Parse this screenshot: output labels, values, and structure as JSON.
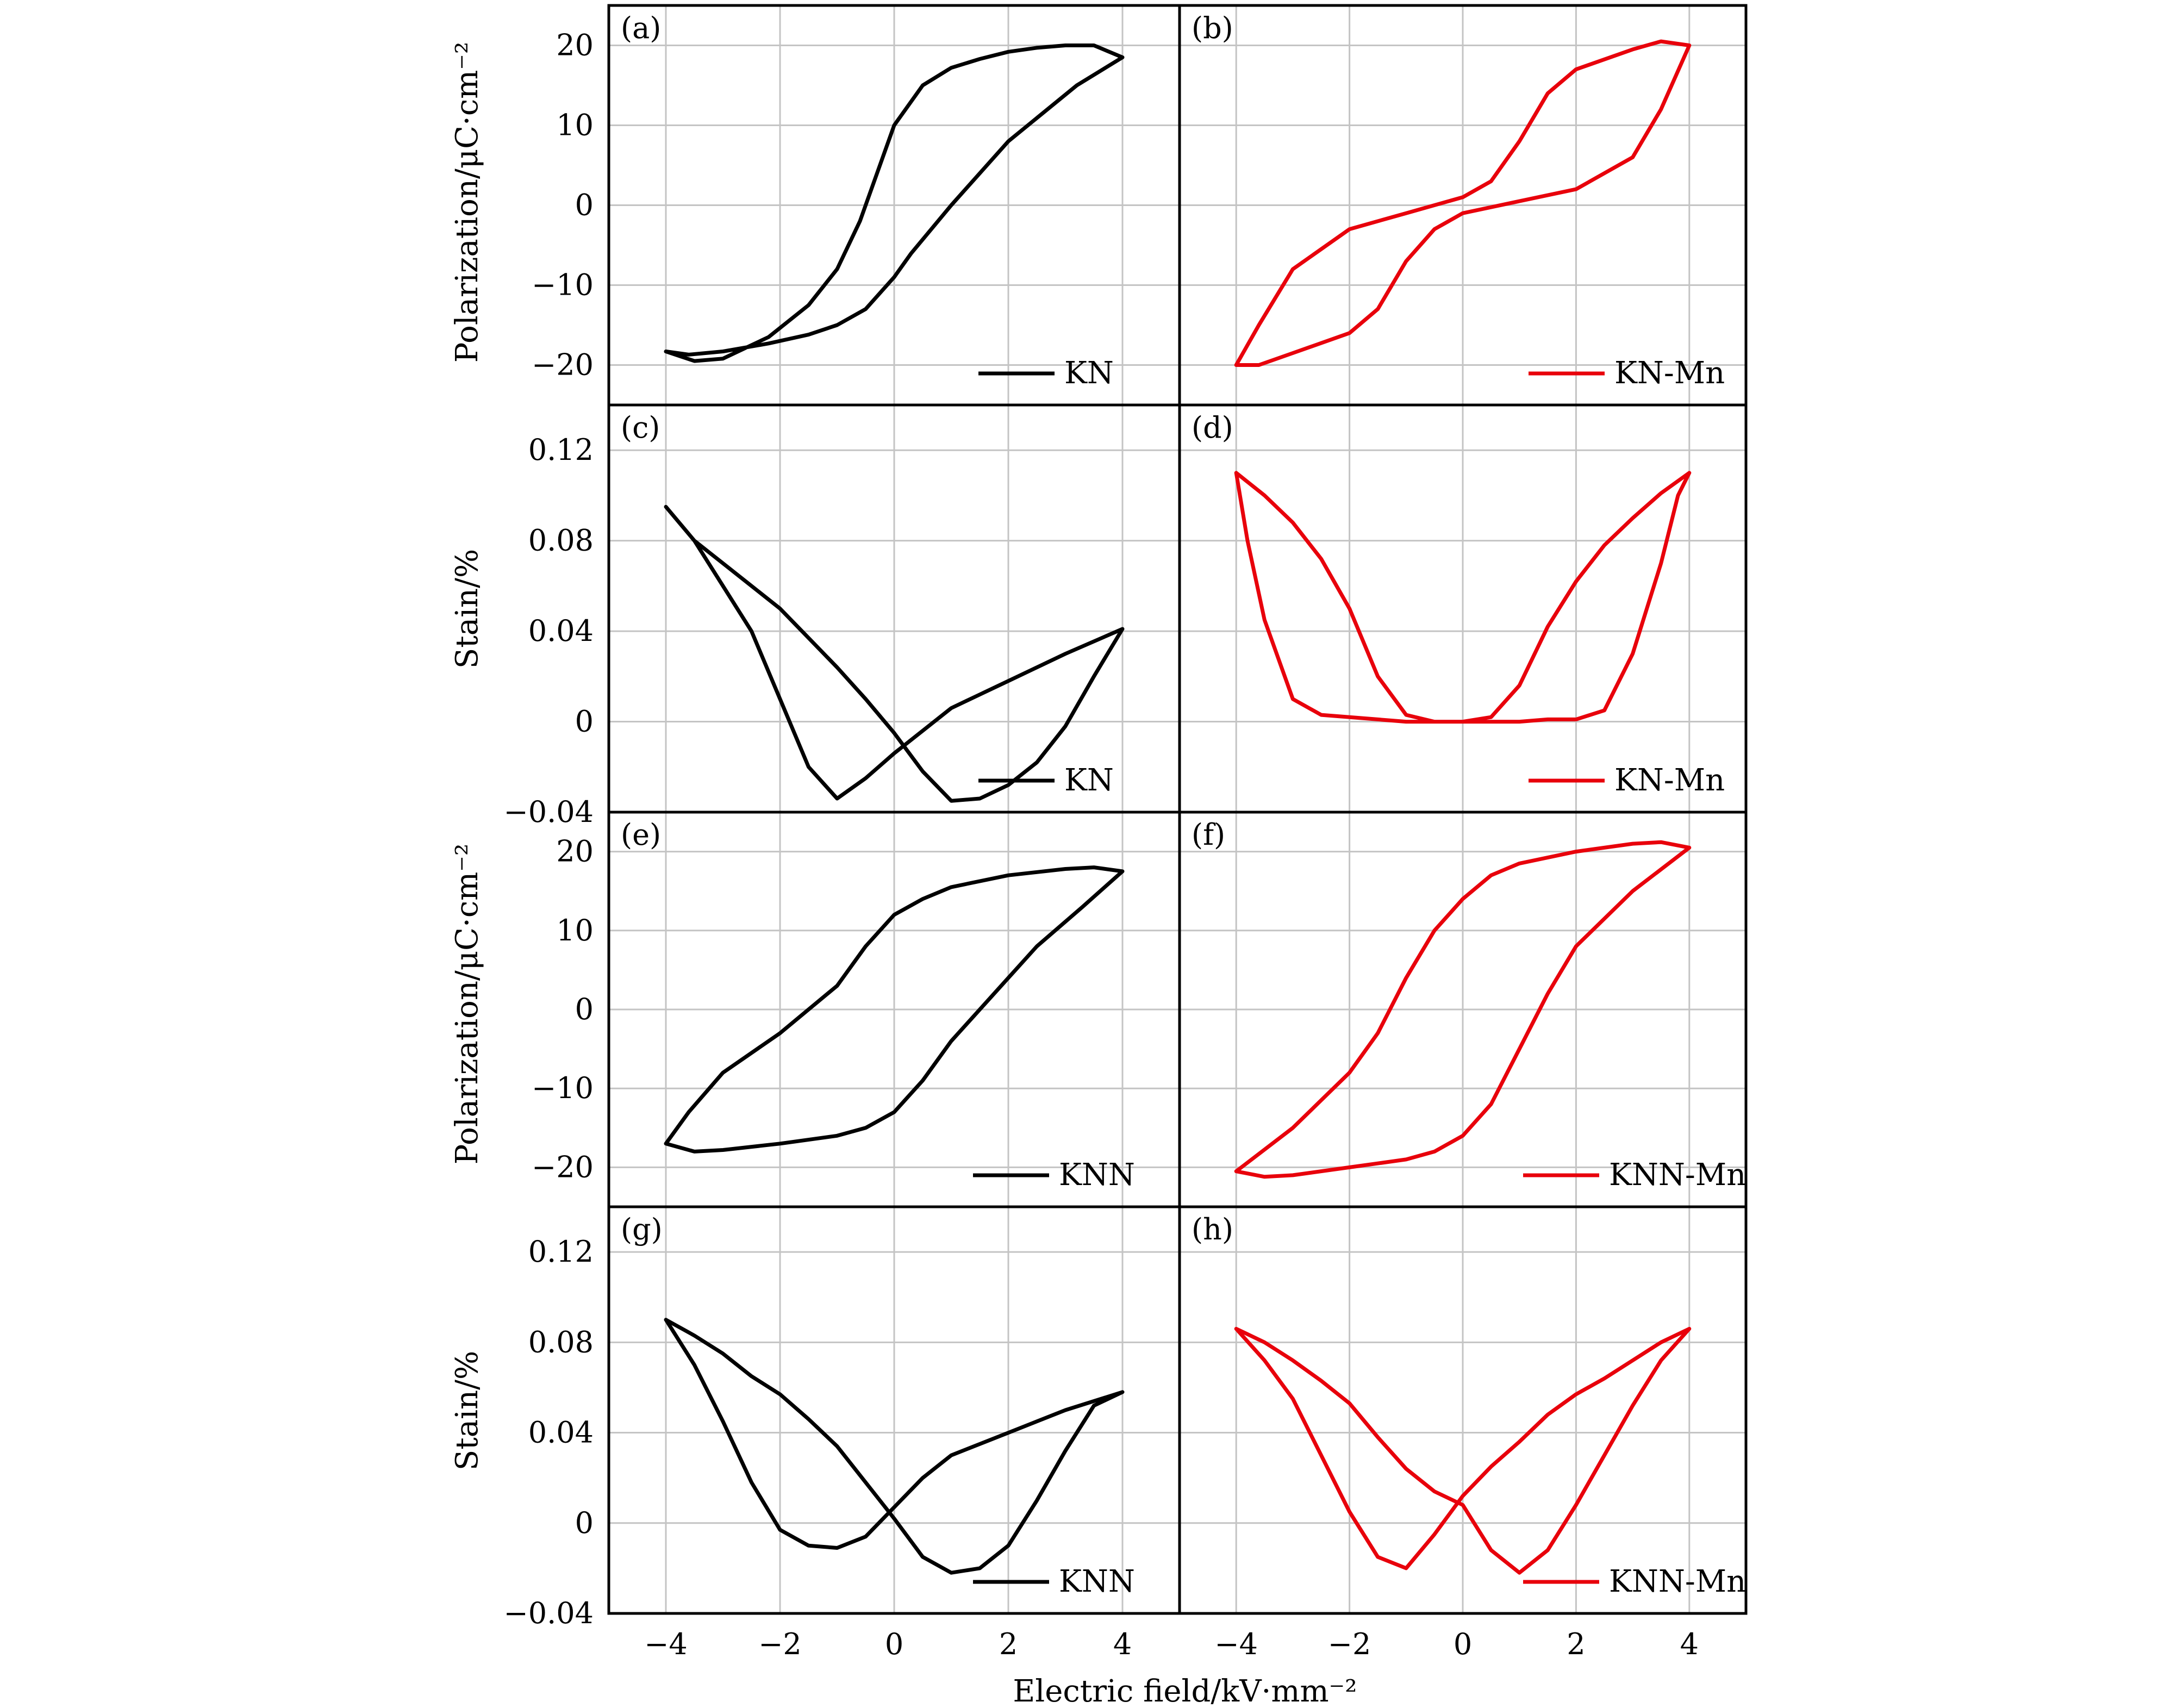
{
  "figure": {
    "xlabel": "Electric field/kV·mm⁻²",
    "polarization_ylabel": "Polarization/μC·cm⁻²",
    "strain_ylabel": "Stain/%",
    "colors": {
      "black": "#000000",
      "red": "#e8000b",
      "grid": "#c4c4c4"
    }
  },
  "chart_data": [
    {
      "panel": "(a)",
      "type": "line",
      "legend_label": "KN",
      "color": "#000000",
      "xlabel": "Electric field/kV·mm⁻²",
      "ylabel": "Polarization/μC·cm⁻²",
      "xlim": [
        -5,
        5
      ],
      "ylim": [
        -25,
        25
      ],
      "xticks": [
        -4,
        -2,
        0,
        2,
        4
      ],
      "yticks": [
        -20,
        -10,
        0,
        10,
        20
      ],
      "ytick_labels": [
        "−20",
        "−10",
        "0",
        "10",
        "20"
      ],
      "grid": true,
      "legend_position": "bottom-right",
      "series": [
        {
          "name": "KN",
          "x": [
            4,
            3.2,
            2,
            1,
            0.3,
            0,
            -0.5,
            -1,
            -1.5,
            -2.2,
            -3,
            -3.6,
            -4,
            -3.5,
            -3,
            -2.2,
            -1.5,
            -1,
            -0.6,
            -0.3,
            0,
            0.5,
            1,
            1.5,
            2,
            2.5,
            3,
            3.5,
            4
          ],
          "y": [
            18.5,
            15,
            8,
            0,
            -6,
            -9,
            -13,
            -15,
            -16.2,
            -17.3,
            -18.3,
            -18.7,
            -18.3,
            -19.5,
            -19.2,
            -16.5,
            -12.5,
            -8,
            -2,
            4,
            10,
            15,
            17.2,
            18.3,
            19.2,
            19.7,
            20,
            20,
            18.5
          ]
        }
      ]
    },
    {
      "panel": "(b)",
      "type": "line",
      "legend_label": "KN-Mn",
      "color": "#e8000b",
      "xlabel": "Electric field/kV·mm⁻²",
      "ylabel": "Polarization/μC·cm⁻²",
      "xlim": [
        -5,
        5
      ],
      "ylim": [
        -25,
        25
      ],
      "xticks": [
        -4,
        -2,
        0,
        2,
        4
      ],
      "yticks": [
        -20,
        -10,
        0,
        10,
        20
      ],
      "ytick_labels": [
        "−20",
        "−10",
        "0",
        "10",
        "20"
      ],
      "grid": true,
      "legend_position": "bottom-right",
      "series": [
        {
          "name": "KN-Mn",
          "x": [
            4,
            3.5,
            3,
            2,
            1,
            0,
            -0.5,
            -1,
            -1.5,
            -2,
            -3,
            -3.6,
            -4,
            -3.6,
            -3,
            -2,
            -1,
            0,
            0.5,
            1,
            1.5,
            2,
            3,
            3.5,
            4
          ],
          "y": [
            20,
            12,
            6,
            2,
            0.5,
            -1,
            -3,
            -7,
            -13,
            -16,
            -18.5,
            -20,
            -20,
            -15,
            -8,
            -3,
            -1,
            1,
            3,
            8,
            14,
            17,
            19.5,
            20.5,
            20
          ]
        }
      ]
    },
    {
      "panel": "(c)",
      "type": "line",
      "legend_label": "KN",
      "color": "#000000",
      "xlabel": "Electric field/kV·mm⁻²",
      "ylabel": "Stain/%",
      "xlim": [
        -5,
        5
      ],
      "ylim": [
        -0.04,
        0.14
      ],
      "xticks": [
        -4,
        -2,
        0,
        2,
        4
      ],
      "yticks": [
        -0.04,
        0,
        0.04,
        0.08,
        0.12
      ],
      "ytick_labels": [
        "−0.04",
        "0",
        "0.04",
        "0.08",
        "0.12"
      ],
      "grid": true,
      "legend_position": "bottom-right",
      "series": [
        {
          "name": "KN",
          "x": [
            -4,
            -3.5,
            -3,
            -2.5,
            -2,
            -1.5,
            -1,
            -0.5,
            0,
            0.5,
            1,
            1.5,
            2,
            2.5,
            3,
            3.5,
            4,
            3,
            2,
            1.5,
            1,
            0.5,
            0,
            -0.5,
            -1,
            -1.5,
            -2,
            -2.5,
            -3,
            -3.5,
            -4
          ],
          "y": [
            0.095,
            0.08,
            0.07,
            0.06,
            0.05,
            0.037,
            0.024,
            0.01,
            -0.005,
            -0.022,
            -0.035,
            -0.034,
            -0.028,
            -0.018,
            -0.002,
            0.02,
            0.041,
            0.03,
            0.018,
            0.012,
            0.006,
            -0.004,
            -0.014,
            -0.025,
            -0.034,
            -0.02,
            0.01,
            0.04,
            0.06,
            0.08,
            0.095
          ]
        }
      ]
    },
    {
      "panel": "(d)",
      "type": "line",
      "legend_label": "KN-Mn",
      "color": "#e8000b",
      "xlabel": "Electric field/kV·mm⁻²",
      "ylabel": "Stain/%",
      "xlim": [
        -5,
        5
      ],
      "ylim": [
        -0.04,
        0.14
      ],
      "xticks": [
        -4,
        -2,
        0,
        2,
        4
      ],
      "yticks": [
        -0.04,
        0,
        0.04,
        0.08,
        0.12
      ],
      "ytick_labels": [
        "−0.04",
        "0",
        "0.04",
        "0.08",
        "0.12"
      ],
      "grid": true,
      "legend_position": "bottom-right",
      "series": [
        {
          "name": "KN-Mn",
          "x": [
            -4,
            -3.5,
            -3,
            -2.5,
            -2,
            -1.5,
            -1,
            -0.5,
            0,
            0.5,
            1,
            1.5,
            2,
            2.5,
            3,
            3.5,
            4,
            3.8,
            3.5,
            3,
            2.5,
            2,
            1.5,
            1,
            0.5,
            0,
            -0.5,
            -1,
            -1.5,
            -2,
            -2.5,
            -3,
            -3.5,
            -3.8,
            -4
          ],
          "y": [
            0.11,
            0.1,
            0.088,
            0.072,
            0.05,
            0.02,
            0.003,
            0,
            0,
            0.002,
            0.016,
            0.042,
            0.062,
            0.078,
            0.09,
            0.101,
            0.11,
            0.1,
            0.07,
            0.03,
            0.005,
            0.001,
            0.001,
            0,
            0,
            0,
            0,
            0,
            0.001,
            0.002,
            0.003,
            0.01,
            0.045,
            0.08,
            0.11
          ]
        }
      ]
    },
    {
      "panel": "(e)",
      "type": "line",
      "legend_label": "KNN",
      "color": "#000000",
      "xlabel": "Electric field/kV·mm⁻²",
      "ylabel": "Polarization/μC·cm⁻²",
      "xlim": [
        -5,
        5
      ],
      "ylim": [
        -25,
        25
      ],
      "xticks": [
        -4,
        -2,
        0,
        2,
        4
      ],
      "yticks": [
        -20,
        -10,
        0,
        10,
        20
      ],
      "ytick_labels": [
        "−20",
        "−10",
        "0",
        "10",
        "20"
      ],
      "grid": true,
      "legend_position": "bottom-right",
      "series": [
        {
          "name": "KNN",
          "x": [
            4,
            3.3,
            2.5,
            2,
            1.5,
            1,
            0.5,
            0,
            -0.5,
            -1,
            -2,
            -3,
            -3.5,
            -4,
            -3.6,
            -3,
            -2,
            -1,
            -0.5,
            0,
            0.5,
            1,
            2,
            3,
            3.5,
            4
          ],
          "y": [
            17.5,
            13,
            8,
            4,
            0,
            -4,
            -9,
            -13,
            -15,
            -16,
            -17,
            -17.8,
            -18,
            -17,
            -13,
            -8,
            -3,
            3,
            8,
            12,
            14,
            15.5,
            17,
            17.8,
            18,
            17.5
          ]
        }
      ]
    },
    {
      "panel": "(f)",
      "type": "line",
      "legend_label": "KNN-Mn",
      "color": "#e8000b",
      "xlabel": "Electric field/kV·mm⁻²",
      "ylabel": "Polarization/μC·cm⁻²",
      "xlim": [
        -5,
        5
      ],
      "ylim": [
        -25,
        25
      ],
      "xticks": [
        -4,
        -2,
        0,
        2,
        4
      ],
      "yticks": [
        -20,
        -10,
        0,
        10,
        20
      ],
      "ytick_labels": [
        "−20",
        "−10",
        "0",
        "10",
        "20"
      ],
      "grid": true,
      "legend_position": "bottom-right",
      "series": [
        {
          "name": "KNN-Mn",
          "x": [
            4,
            3,
            2,
            1.5,
            1,
            0.5,
            0,
            -0.5,
            -1,
            -2,
            -3,
            -3.5,
            -4,
            -3,
            -2,
            -1.5,
            -1,
            -0.5,
            0,
            0.5,
            1,
            2,
            3,
            3.5,
            4
          ],
          "y": [
            20.5,
            15,
            8,
            2,
            -5,
            -12,
            -16,
            -18,
            -19,
            -20,
            -21,
            -21.2,
            -20.5,
            -15,
            -8,
            -3,
            4,
            10,
            14,
            17,
            18.5,
            20,
            21,
            21.2,
            20.5
          ]
        }
      ]
    },
    {
      "panel": "(g)",
      "type": "line",
      "legend_label": "KNN",
      "color": "#000000",
      "xlabel": "Electric field/kV·mm⁻²",
      "ylabel": "Stain/%",
      "xlim": [
        -5,
        5
      ],
      "ylim": [
        -0.04,
        0.14
      ],
      "xticks": [
        -4,
        -2,
        0,
        2,
        4
      ],
      "yticks": [
        -0.04,
        0,
        0.04,
        0.08,
        0.12
      ],
      "ytick_labels": [
        "−0.04",
        "0",
        "0.04",
        "0.08",
        "0.12"
      ],
      "grid": true,
      "legend_position": "bottom-right",
      "series": [
        {
          "name": "KNN",
          "x": [
            -4,
            -3.5,
            -3,
            -2.5,
            -2,
            -1.5,
            -1,
            -0.5,
            0,
            0.5,
            1,
            1.5,
            2,
            2.5,
            3,
            3.5,
            4,
            3,
            2,
            1,
            0.5,
            0,
            -0.5,
            -1,
            -1.5,
            -2,
            -2.5,
            -3,
            -3.5,
            -4
          ],
          "y": [
            0.09,
            0.083,
            0.075,
            0.065,
            0.057,
            0.046,
            0.034,
            0.018,
            0.002,
            -0.015,
            -0.022,
            -0.02,
            -0.01,
            0.01,
            0.032,
            0.052,
            0.058,
            0.05,
            0.04,
            0.03,
            0.02,
            0.007,
            -0.006,
            -0.011,
            -0.01,
            -0.003,
            0.018,
            0.045,
            0.07,
            0.09
          ]
        }
      ]
    },
    {
      "panel": "(h)",
      "type": "line",
      "legend_label": "KNN-Mn",
      "color": "#e8000b",
      "xlabel": "Electric field/kV·mm⁻²",
      "ylabel": "Stain/%",
      "xlim": [
        -5,
        5
      ],
      "ylim": [
        -0.04,
        0.14
      ],
      "xticks": [
        -4,
        -2,
        0,
        2,
        4
      ],
      "yticks": [
        -0.04,
        0,
        0.04,
        0.08,
        0.12
      ],
      "ytick_labels": [
        "−0.04",
        "0",
        "0.04",
        "0.08",
        "0.12"
      ],
      "grid": true,
      "legend_position": "bottom-right",
      "series": [
        {
          "name": "KNN-Mn",
          "x": [
            -4,
            -3.5,
            -3,
            -2.5,
            -2,
            -1.5,
            -1,
            -0.5,
            0,
            0.5,
            1,
            1.5,
            2,
            2.5,
            3,
            3.5,
            4,
            3.5,
            3,
            2.5,
            2,
            1.5,
            1,
            0.5,
            0,
            -0.5,
            -1,
            -1.5,
            -2,
            -2.5,
            -3,
            -3.5,
            -4
          ],
          "y": [
            0.086,
            0.08,
            0.072,
            0.063,
            0.053,
            0.038,
            0.024,
            0.014,
            0.008,
            -0.012,
            -0.022,
            -0.012,
            0.008,
            0.03,
            0.052,
            0.072,
            0.086,
            0.08,
            0.072,
            0.064,
            0.057,
            0.048,
            0.036,
            0.025,
            0.012,
            -0.005,
            -0.02,
            -0.015,
            0.005,
            0.03,
            0.055,
            0.072,
            0.086
          ]
        }
      ]
    }
  ]
}
